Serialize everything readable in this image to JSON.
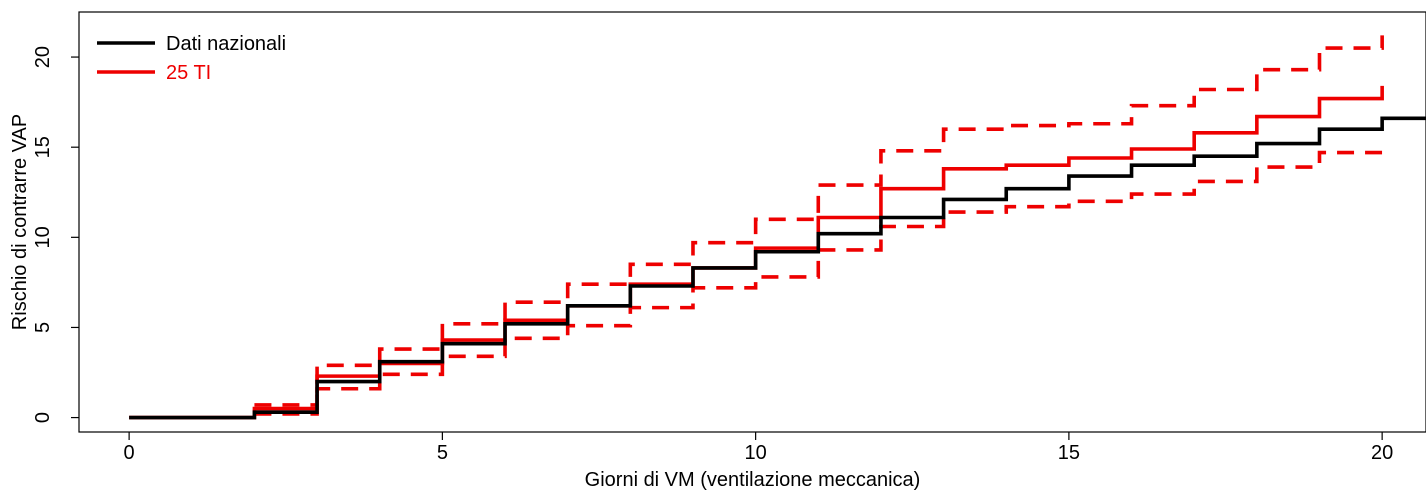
{
  "chart_data": {
    "type": "line",
    "step": true,
    "xlabel": "Giorni di VM (ventilazione meccanica)",
    "ylabel": "Rischio di contrarre VAP",
    "xlim": [
      -0.8,
      20.7
    ],
    "ylim": [
      -0.8,
      22.5
    ],
    "xticks": [
      0,
      5,
      10,
      15,
      20
    ],
    "yticks": [
      0,
      5,
      10,
      15,
      20
    ],
    "legend_position": "top-left",
    "series": [
      {
        "name": "Dati nazionali",
        "color": "#000000",
        "style": "solid",
        "x": [
          0,
          2,
          3,
          4,
          5,
          6,
          7,
          8,
          9,
          10,
          11,
          12,
          13,
          14,
          15,
          16,
          17,
          18,
          19,
          20,
          20.7
        ],
        "y": [
          0,
          0.3,
          2.0,
          3.1,
          4.1,
          5.2,
          6.2,
          7.3,
          8.3,
          9.2,
          10.2,
          11.1,
          12.1,
          12.7,
          13.4,
          14.0,
          14.5,
          15.2,
          16.0,
          16.6,
          16.6
        ]
      },
      {
        "name": "25 TI",
        "color": "#ee0000",
        "style": "solid",
        "x": [
          0,
          2,
          3,
          4,
          5,
          6,
          7,
          8,
          9,
          10,
          11,
          12,
          13,
          14,
          15,
          16,
          17,
          18,
          19,
          20
        ],
        "y": [
          0,
          0.5,
          2.3,
          3.0,
          4.3,
          5.4,
          6.2,
          7.4,
          8.3,
          9.4,
          11.1,
          12.7,
          13.8,
          14.0,
          14.4,
          14.9,
          15.8,
          16.7,
          17.7,
          18.4
        ]
      },
      {
        "name": "",
        "color": "#ee0000",
        "style": "dashed",
        "x": [
          2,
          3,
          4,
          5,
          6,
          7,
          8,
          9,
          10,
          11,
          12,
          13,
          14,
          15,
          16,
          17,
          18,
          19,
          20
        ],
        "y": [
          0.7,
          2.9,
          3.8,
          5.2,
          6.4,
          7.4,
          8.5,
          9.7,
          11.0,
          12.9,
          14.8,
          16.0,
          16.2,
          16.3,
          17.3,
          18.2,
          19.3,
          20.5,
          21.2
        ]
      },
      {
        "name": "",
        "color": "#ee0000",
        "style": "dashed",
        "x": [
          2,
          3,
          4,
          5,
          6,
          7,
          8,
          9,
          10,
          11,
          12,
          13,
          14,
          15,
          16,
          17,
          18,
          19,
          20
        ],
        "y": [
          0.2,
          1.6,
          2.4,
          3.4,
          4.4,
          5.1,
          6.1,
          7.2,
          7.8,
          9.3,
          10.6,
          11.4,
          11.7,
          12.0,
          12.4,
          13.1,
          13.9,
          14.7,
          14.7
        ]
      }
    ]
  }
}
